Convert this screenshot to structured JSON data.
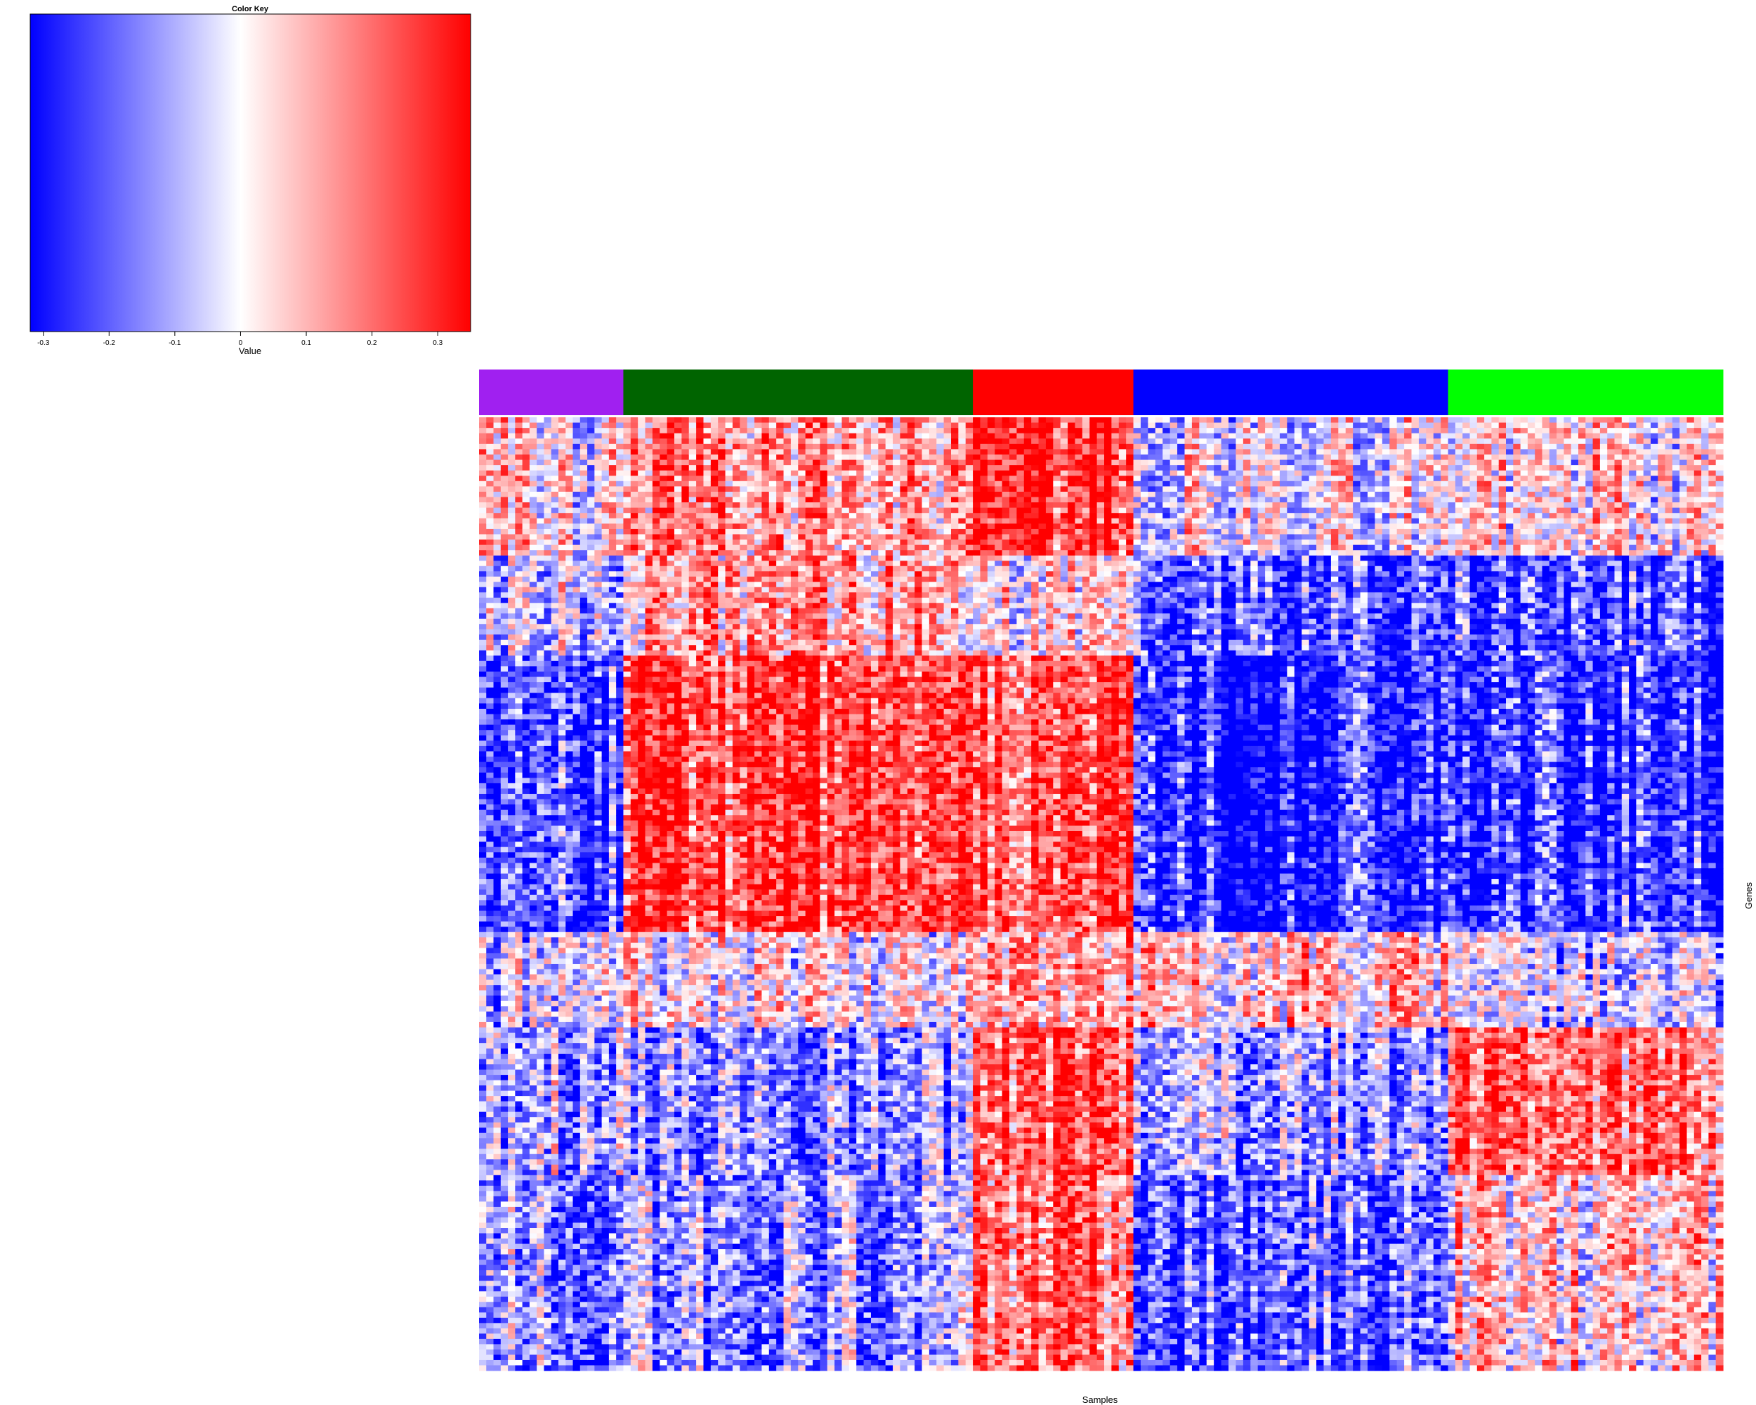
{
  "chart_data": {
    "type": "heatmap",
    "color_key": {
      "title": "Color Key",
      "xlabel": "Value",
      "range": [
        -0.32,
        0.35
      ],
      "ticks": [
        -0.3,
        -0.2,
        -0.1,
        0,
        0.1,
        0.2,
        0.3
      ],
      "tick_labels": [
        "-0.3",
        "-0.2",
        "-0.1",
        "0",
        "0.1",
        "0.2",
        "0.3"
      ],
      "colors": {
        "low": "#0000ff",
        "mid": "#ffffff",
        "high": "#ff0000"
      }
    },
    "xlabel": "Samples",
    "ylabel": "Genes",
    "sample_groups": [
      {
        "color": "#a020f0",
        "fraction": 0.116
      },
      {
        "color": "#006400",
        "fraction": 0.281
      },
      {
        "color": "#ff0000",
        "fraction": 0.129
      },
      {
        "color": "#0000ff",
        "fraction": 0.253
      },
      {
        "color": "#00ff00",
        "fraction": 0.221
      }
    ],
    "gene_blocks": [
      {
        "fraction": 0.145,
        "group_means": [
          0.02,
          0.14,
          0.3,
          0.0,
          0.03
        ]
      },
      {
        "fraction": 0.105,
        "group_means": [
          -0.04,
          0.12,
          0.04,
          -0.2,
          -0.22
        ]
      },
      {
        "fraction": 0.29,
        "group_means": [
          -0.22,
          0.26,
          0.24,
          -0.27,
          -0.24
        ]
      },
      {
        "fraction": 0.1,
        "group_means": [
          -0.04,
          0.02,
          0.14,
          0.07,
          -0.06
        ]
      },
      {
        "fraction": 0.155,
        "group_means": [
          -0.09,
          -0.14,
          0.26,
          -0.1,
          0.2
        ]
      },
      {
        "fraction": 0.205,
        "group_means": [
          -0.11,
          -0.12,
          0.2,
          -0.2,
          0.06
        ]
      }
    ]
  }
}
